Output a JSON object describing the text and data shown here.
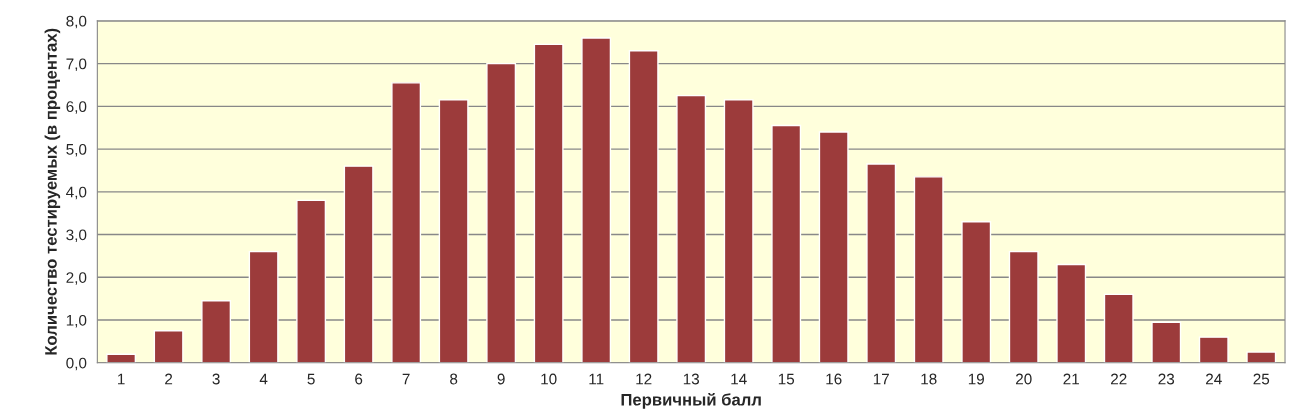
{
  "chart_data": {
    "type": "bar",
    "xlabel": "Первичный балл",
    "ylabel": "Количество тестируемых (в процентах)",
    "categories": [
      "1",
      "2",
      "3",
      "4",
      "5",
      "6",
      "7",
      "8",
      "9",
      "10",
      "11",
      "12",
      "13",
      "14",
      "15",
      "16",
      "17",
      "18",
      "19",
      "20",
      "21",
      "22",
      "23",
      "24",
      "25"
    ],
    "values": [
      0.2,
      0.75,
      1.45,
      2.6,
      3.8,
      4.6,
      6.55,
      6.15,
      7.0,
      7.45,
      7.6,
      7.3,
      6.25,
      6.15,
      5.55,
      5.4,
      4.65,
      4.35,
      3.3,
      2.6,
      2.3,
      1.6,
      0.95,
      0.6,
      0.25
    ],
    "color": "#9c3b3b",
    "ylim": [
      0,
      8
    ],
    "yticks": [
      {
        "value": 0,
        "label": "0,0"
      },
      {
        "value": 1,
        "label": "1,0"
      },
      {
        "value": 2,
        "label": "2,0"
      },
      {
        "value": 3,
        "label": "3,0"
      },
      {
        "value": 4,
        "label": "4,0"
      },
      {
        "value": 5,
        "label": "5,0"
      },
      {
        "value": 6,
        "label": "6,0"
      },
      {
        "value": 7,
        "label": "7,0"
      },
      {
        "value": 8,
        "label": "8,0"
      }
    ],
    "grid": "y",
    "legend": false
  }
}
